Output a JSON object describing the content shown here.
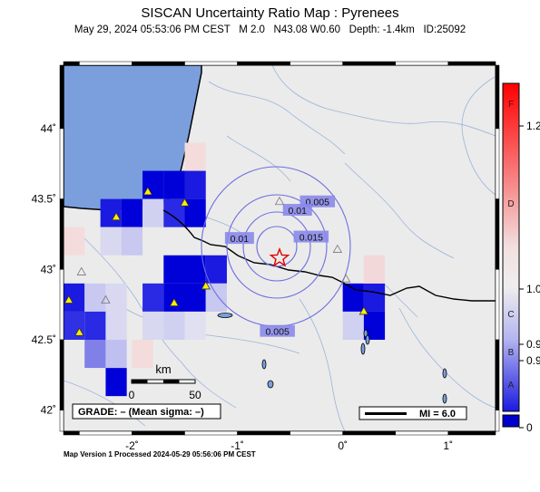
{
  "header": {
    "title": "SISCAN Uncertainty Ratio Map : Pyrenees",
    "subtitle": "May 29, 2024 05:53:06 PM CEST   M 2.0   N43.08 W0.60   Depth: -1.4km   ID:25092"
  },
  "map": {
    "lon_range": [
      -2.65,
      1.45
    ],
    "lat_range": [
      41.85,
      44.45
    ],
    "x_ticks": [
      {
        "v": -2,
        "label": "-2˚"
      },
      {
        "v": -1,
        "label": "-1˚"
      },
      {
        "v": 0,
        "label": "0˚"
      },
      {
        "v": 1,
        "label": "1˚"
      }
    ],
    "y_ticks": [
      {
        "v": 44,
        "label": "44˚"
      },
      {
        "v": 43.5,
        "label": "43.5˚"
      },
      {
        "v": 43,
        "label": "43˚"
      },
      {
        "v": 42.5,
        "label": "42.5˚"
      },
      {
        "v": 42,
        "label": "42˚"
      }
    ],
    "epicenter": {
      "lon": -0.6,
      "lat": 43.08
    },
    "contours": [
      {
        "label": "0.005",
        "lon": -0.24,
        "lat": 43.48
      },
      {
        "label": "0.01",
        "lon": -0.43,
        "lat": 43.42
      },
      {
        "label": "0.015",
        "lon": -0.3,
        "lat": 43.23
      },
      {
        "label": "0.01",
        "lon": -0.98,
        "lat": 43.22
      },
      {
        "label": "0.005",
        "lon": -0.62,
        "lat": 42.56
      }
    ],
    "scale_bar": {
      "title": "km",
      "labels": [
        "0",
        "50"
      ]
    },
    "grade_box": "GRADE: – (Mean sigma: –)",
    "mi_box": "MI = 6.0"
  },
  "colorbar": {
    "letters": [
      "F",
      "D",
      "C",
      "B",
      "A"
    ],
    "values": [
      "1.2",
      "1.0",
      "0.9",
      "0.9",
      "0"
    ]
  },
  "footer": "Map Version 1 Processed 2024-05-29 05:56:06 PM CEST",
  "colors": {
    "sea": "#7b9fdc",
    "land": "#ebebeb",
    "contour": "#6e6ee0",
    "grid_blue": "#0000cc",
    "epicenter": "#e00000"
  }
}
